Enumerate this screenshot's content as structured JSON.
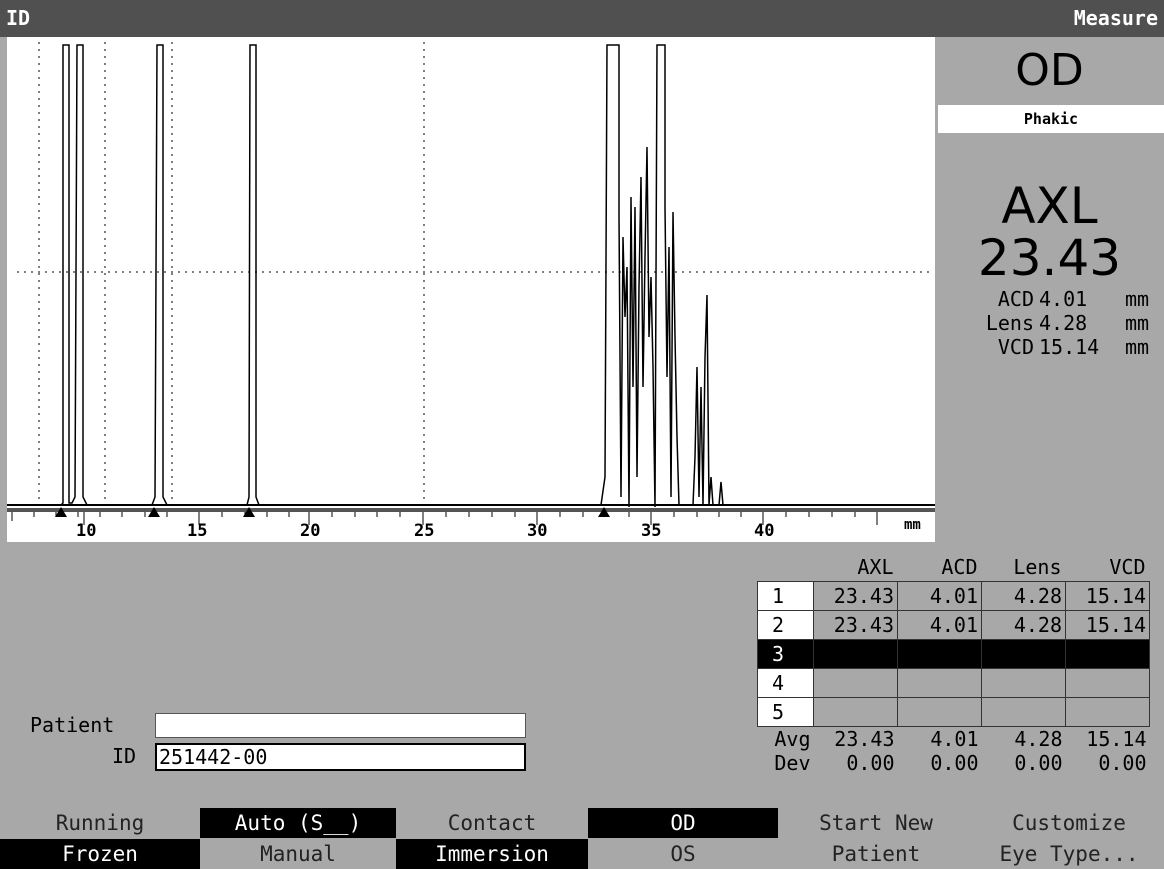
{
  "title": {
    "left": "ID",
    "right": "Measure"
  },
  "eye": "OD",
  "lens_state": "Phakic",
  "main_measure": {
    "label": "AXL",
    "value": "23.43"
  },
  "sub_measures": [
    {
      "label": "ACD",
      "value": "4.01",
      "unit": "mm"
    },
    {
      "label": "Lens",
      "value": "4.28",
      "unit": "mm"
    },
    {
      "label": "VCD",
      "value": "15.14",
      "unit": "mm"
    }
  ],
  "scan": {
    "axis_unit": "mm",
    "tick_labels": [
      "10",
      "15",
      "20",
      "25",
      "30",
      "35",
      "40"
    ]
  },
  "table": {
    "headers": [
      "AXL",
      "ACD",
      "Lens",
      "VCD"
    ],
    "rows": [
      {
        "n": "1",
        "vals": [
          "23.43",
          "4.01",
          "4.28",
          "15.14"
        ]
      },
      {
        "n": "2",
        "vals": [
          "23.43",
          "4.01",
          "4.28",
          "15.14"
        ]
      },
      {
        "n": "3",
        "vals": [
          "",
          "",
          "",
          ""
        ]
      },
      {
        "n": "4",
        "vals": [
          "",
          "",
          "",
          ""
        ]
      },
      {
        "n": "5",
        "vals": [
          "",
          "",
          "",
          ""
        ]
      }
    ],
    "avg": {
      "label": "Avg",
      "vals": [
        "23.43",
        "4.01",
        "4.28",
        "15.14"
      ]
    },
    "dev": {
      "label": "Dev",
      "vals": [
        "0.00",
        "0.00",
        "0.00",
        "0.00"
      ]
    }
  },
  "patient": {
    "label": "Patient",
    "name": "",
    "id_label": "ID",
    "id_value": "251442-00"
  },
  "modes": {
    "running": "Running",
    "frozen": "Frozen",
    "auto": "Auto (S__)",
    "manual": "Manual",
    "contact": "Contact",
    "immersion": "Immersion",
    "od": "OD",
    "os": "OS",
    "start_new_1": "Start New",
    "start_new_2": "Patient",
    "customize_1": "Customize",
    "customize_2": "Eye Type..."
  }
}
